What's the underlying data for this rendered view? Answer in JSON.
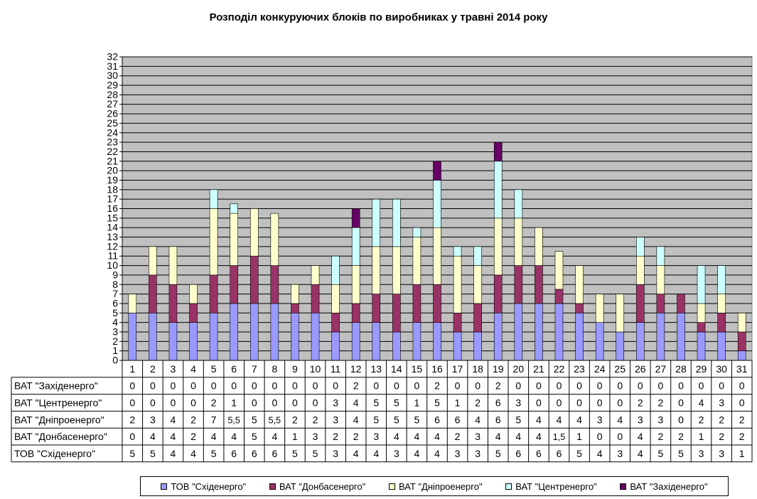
{
  "chart_data": {
    "type": "bar",
    "stacked": true,
    "title": "Розподіл конкуруючих блоків по виробниках у травні 2014 року",
    "xlabel": "",
    "ylabel": "",
    "ylim": [
      0,
      32
    ],
    "y_ticks": [
      0,
      1,
      2,
      3,
      4,
      5,
      6,
      7,
      8,
      9,
      10,
      11,
      12,
      13,
      14,
      15,
      16,
      17,
      18,
      19,
      20,
      21,
      22,
      23,
      24,
      25,
      26,
      27,
      28,
      29,
      30,
      31,
      32
    ],
    "grid": true,
    "legend_position": "bottom",
    "plot_background": "#c0c0c0",
    "categories": [
      "1",
      "2",
      "3",
      "4",
      "5",
      "6",
      "7",
      "8",
      "9",
      "10",
      "11",
      "12",
      "13",
      "14",
      "15",
      "16",
      "17",
      "18",
      "19",
      "20",
      "21",
      "22",
      "23",
      "24",
      "25",
      "26",
      "27",
      "28",
      "29",
      "30",
      "31"
    ],
    "series": [
      {
        "name": "ТОВ \"Східенерго\"",
        "color": "#9999ff",
        "values": [
          5,
          5,
          4,
          4,
          5,
          6,
          6,
          6,
          5,
          5,
          3,
          4,
          4,
          3,
          4,
          4,
          3,
          3,
          5,
          6,
          6,
          6,
          5,
          4,
          3,
          4,
          5,
          5,
          3,
          3,
          1
        ],
        "labels": [
          "5",
          "5",
          "4",
          "4",
          "5",
          "6",
          "6",
          "6",
          "5",
          "5",
          "3",
          "4",
          "4",
          "3",
          "4",
          "4",
          "3",
          "3",
          "5",
          "6",
          "6",
          "6",
          "5",
          "4",
          "3",
          "4",
          "5",
          "5",
          "3",
          "3",
          "1"
        ]
      },
      {
        "name": "ВАТ \"Донбасенерго\"",
        "color": "#993366",
        "values": [
          0,
          4,
          4,
          2,
          4,
          4,
          5,
          4,
          1,
          3,
          2,
          2,
          3,
          4,
          4,
          4,
          2,
          3,
          4,
          4,
          4,
          1.5,
          1,
          0,
          0,
          4,
          2,
          2,
          1,
          2,
          2
        ],
        "labels": [
          "0",
          "4",
          "4",
          "2",
          "4",
          "4",
          "5",
          "4",
          "1",
          "3",
          "2",
          "2",
          "3",
          "4",
          "4",
          "4",
          "2",
          "3",
          "4",
          "4",
          "4",
          "1,5",
          "1",
          "0",
          "0",
          "4",
          "2",
          "2",
          "1",
          "2",
          "2"
        ]
      },
      {
        "name": "ВАТ \"Дніпроенерго\"",
        "color": "#ffffcc",
        "values": [
          2,
          3,
          4,
          2,
          7,
          5.5,
          5,
          5.5,
          2,
          2,
          3,
          4,
          5,
          5,
          5,
          6,
          6,
          4,
          6,
          5,
          4,
          4,
          4,
          3,
          4,
          3,
          3,
          0,
          2,
          2,
          2
        ],
        "labels": [
          "2",
          "3",
          "4",
          "2",
          "7",
          "5,5",
          "5",
          "5,5",
          "2",
          "2",
          "3",
          "4",
          "5",
          "5",
          "5",
          "6",
          "6",
          "4",
          "6",
          "5",
          "4",
          "4",
          "4",
          "3",
          "4",
          "3",
          "3",
          "0",
          "2",
          "2",
          "2"
        ]
      },
      {
        "name": "ВАТ \"Центренерго\"",
        "color": "#ccffff",
        "values": [
          0,
          0,
          0,
          0,
          2,
          1,
          0,
          0,
          0,
          0,
          3,
          4,
          5,
          5,
          1,
          5,
          1,
          2,
          6,
          3,
          0,
          0,
          0,
          0,
          0,
          2,
          2,
          0,
          4,
          3,
          0
        ],
        "labels": [
          "0",
          "0",
          "0",
          "0",
          "2",
          "1",
          "0",
          "0",
          "0",
          "0",
          "3",
          "4",
          "5",
          "5",
          "1",
          "5",
          "1",
          "2",
          "6",
          "3",
          "0",
          "0",
          "0",
          "0",
          "0",
          "2",
          "2",
          "0",
          "4",
          "3",
          "0"
        ]
      },
      {
        "name": "ВАТ \"Західенерго\"",
        "color": "#660066",
        "values": [
          0,
          0,
          0,
          0,
          0,
          0,
          0,
          0,
          0,
          0,
          0,
          2,
          0,
          0,
          0,
          2,
          0,
          0,
          2,
          0,
          0,
          0,
          0,
          0,
          0,
          0,
          0,
          0,
          0,
          0,
          0
        ],
        "labels": [
          "0",
          "0",
          "0",
          "0",
          "0",
          "0",
          "0",
          "0",
          "0",
          "0",
          "0",
          "2",
          "0",
          "0",
          "0",
          "2",
          "0",
          "0",
          "2",
          "0",
          "0",
          "0",
          "0",
          "0",
          "0",
          "0",
          "0",
          "0",
          "0",
          "0",
          "0"
        ]
      }
    ]
  }
}
